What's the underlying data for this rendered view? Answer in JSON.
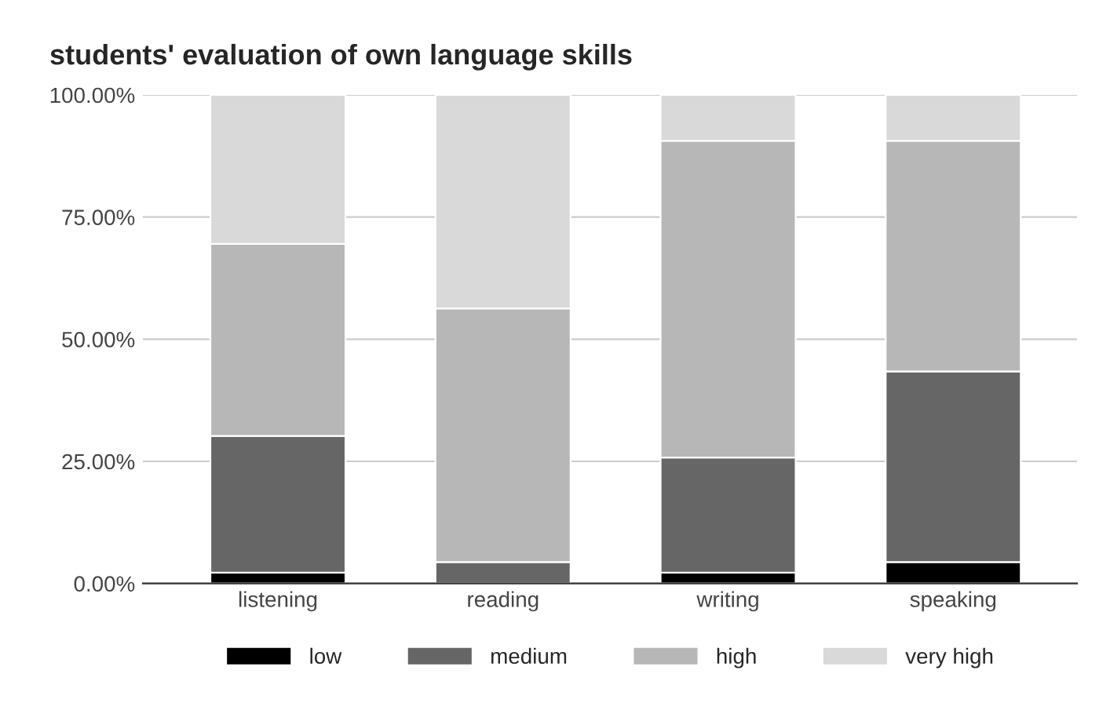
{
  "chart_data": {
    "type": "bar",
    "title": "students' evaluation of own language skills",
    "stacked": true,
    "categories": [
      "listening",
      "reading",
      "writing",
      "speaking"
    ],
    "series": [
      {
        "name": "low",
        "color": "#000000",
        "values": [
          2.2,
          0,
          2.2,
          4.4
        ]
      },
      {
        "name": "medium",
        "color": "#666666",
        "values": [
          28,
          4.4,
          23.6,
          39
        ]
      },
      {
        "name": "high",
        "color": "#b7b7b7",
        "values": [
          39.3,
          51.9,
          64.8,
          47.2
        ]
      },
      {
        "name": "very high",
        "color": "#d9d9d9",
        "values": [
          30.5,
          43.7,
          9.4,
          9.4
        ]
      }
    ],
    "ylim": [
      0,
      100
    ],
    "yticks": [
      {
        "value": 0,
        "label": "0.00%"
      },
      {
        "value": 25,
        "label": "25.00%"
      },
      {
        "value": 50,
        "label": "50.00%"
      },
      {
        "value": 75,
        "label": "75.00%"
      },
      {
        "value": 100,
        "label": "100.00%"
      }
    ],
    "grid": "y",
    "legend": "bottom"
  }
}
